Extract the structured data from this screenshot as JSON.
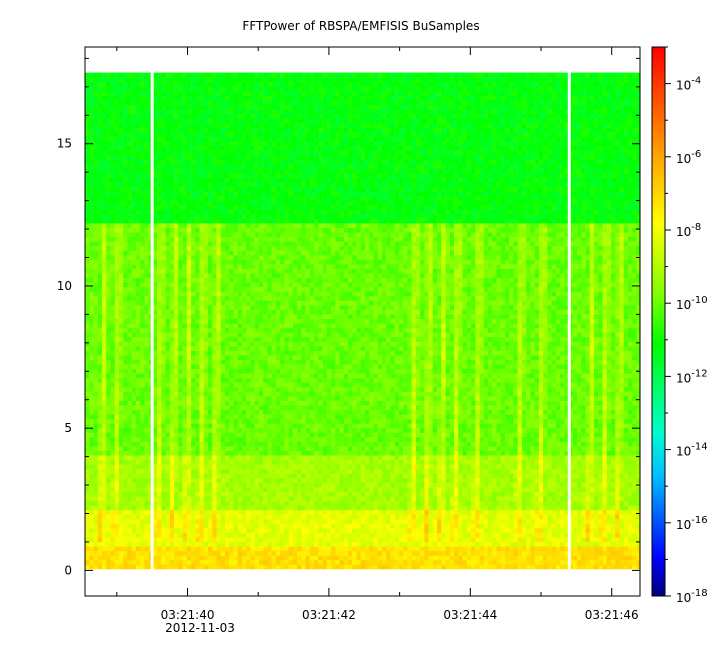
{
  "chart_data": {
    "type": "heatmap",
    "title": "FFTPower of RBSPA/EMFISIS  BuSamples",
    "xlabel": "",
    "ylabel": "",
    "x": {
      "start": "03:21:38.55",
      "end": "03:21:46.40",
      "date_label": "2012-11-03",
      "major_ticks": [
        {
          "value": 40,
          "label": "03:21:40"
        },
        {
          "value": 42,
          "label": "03:21:42"
        },
        {
          "value": 44,
          "label": "03:21:44"
        },
        {
          "value": 46,
          "label": "03:21:46"
        }
      ],
      "minor_ticks": [
        39,
        41,
        43,
        45
      ]
    },
    "y": {
      "range": [
        -0.9,
        18.4
      ],
      "major_ticks": [
        0,
        5,
        10,
        15
      ],
      "minor_ticks": [
        1,
        2,
        3,
        4,
        6,
        7,
        8,
        9,
        11,
        12,
        13,
        14,
        16,
        17,
        18
      ]
    },
    "z": {
      "scale": "log",
      "range": [
        1e-18,
        0.001
      ],
      "tick_exponents": [
        -4,
        -6,
        -8,
        -10,
        -12,
        -14,
        -16,
        -18
      ],
      "base_label": "10",
      "colormap": [
        "#000080",
        "#0000ff",
        "#00bfff",
        "#00ffcc",
        "#00ff00",
        "#80ff00",
        "#ffff00",
        "#ffa500",
        "#ff0000"
      ]
    },
    "data_gaps_x": [
      39.5,
      45.4
    ],
    "data_extent": {
      "x": [
        38.55,
        46.4
      ],
      "y": [
        0.05,
        17.5
      ]
    },
    "level_bands": [
      {
        "y": [
          0.05,
          0.8
        ],
        "log10_power": -7.2
      },
      {
        "y": [
          0.8,
          2.0
        ],
        "log10_power": -8.2
      },
      {
        "y": [
          2.0,
          4.0
        ],
        "log10_power": -9.2
      },
      {
        "y": [
          4.0,
          12.2
        ],
        "log10_power": -10.0
      },
      {
        "y": [
          12.2,
          17.5
        ],
        "log10_power": -11.2
      }
    ],
    "chorus_elements": [
      38.8,
      39.0,
      39.6,
      39.8,
      40.0,
      40.2,
      40.4,
      43.2,
      43.4,
      43.6,
      43.8,
      44.1,
      44.7,
      45.0,
      45.7,
      45.9,
      46.1
    ]
  }
}
